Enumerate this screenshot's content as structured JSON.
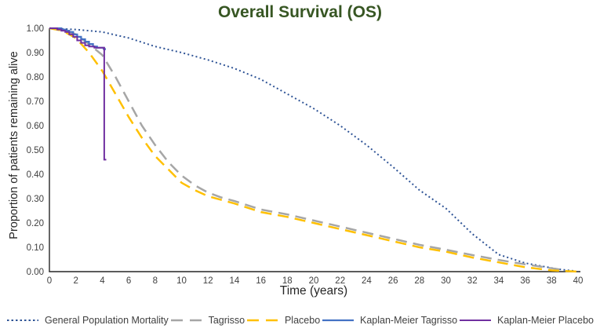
{
  "colors": {
    "title_text": "#375623",
    "axis_line": "#262626",
    "tick_text": "#404040",
    "axis_label_text": "#262626",
    "legend_text": "#404040",
    "background": "#FFFFFF"
  },
  "chart_data": {
    "type": "line",
    "title": "Overall Survival (OS)",
    "xlabel": "Time (years)",
    "ylabel": "Proportion of patients remaining alive",
    "xlim": [
      0,
      40
    ],
    "ylim": [
      0,
      1
    ],
    "x_ticks": [
      0,
      2,
      4,
      6,
      8,
      10,
      12,
      14,
      16,
      18,
      20,
      22,
      24,
      26,
      28,
      30,
      32,
      34,
      36,
      38,
      40
    ],
    "y_tick_labels": [
      "1.00",
      "0.90",
      "0.80",
      "0.70",
      "0.60",
      "0.50",
      "0.40",
      "0.30",
      "0.20",
      "0.10",
      "0.00"
    ],
    "grid": false,
    "legend_position": "bottom",
    "series": [
      {
        "name": "General Population Mortality",
        "color": "#2F5496",
        "line_style": "dotted",
        "line_width": 2,
        "step": false,
        "x": [
          0,
          2,
          4,
          6,
          8,
          10,
          12,
          14,
          16,
          18,
          20,
          22,
          24,
          26,
          28,
          30,
          32,
          34,
          36,
          37.5,
          38.5,
          39.7
        ],
        "y": [
          1.0,
          0.995,
          0.985,
          0.96,
          0.925,
          0.9,
          0.87,
          0.835,
          0.79,
          0.73,
          0.67,
          0.6,
          0.52,
          0.43,
          0.335,
          0.26,
          0.155,
          0.07,
          0.035,
          0.02,
          0.01,
          0.003
        ]
      },
      {
        "name": "Tagrisso",
        "color": "#A6A6A6",
        "line_style": "dashed",
        "line_width": 2.5,
        "step": false,
        "x": [
          0,
          1,
          2,
          3,
          4,
          5,
          6,
          7,
          8,
          9,
          10,
          11,
          12,
          13,
          14,
          16,
          18,
          20,
          22,
          24,
          26,
          28,
          30,
          32,
          34,
          36,
          38,
          39
        ],
        "y": [
          1.0,
          0.995,
          0.975,
          0.935,
          0.89,
          0.8,
          0.7,
          0.6,
          0.52,
          0.45,
          0.395,
          0.355,
          0.325,
          0.305,
          0.29,
          0.255,
          0.235,
          0.21,
          0.185,
          0.16,
          0.135,
          0.11,
          0.09,
          0.068,
          0.048,
          0.03,
          0.014,
          0.006
        ]
      },
      {
        "name": "Placebo",
        "color": "#FFC000",
        "line_style": "dashed",
        "line_width": 2.5,
        "step": false,
        "x": [
          0,
          1,
          2,
          3,
          4,
          5,
          6,
          7,
          8,
          9,
          10,
          11,
          12,
          13,
          14,
          16,
          18,
          20,
          22,
          24,
          26,
          28,
          30,
          32,
          34,
          36,
          38,
          40
        ],
        "y": [
          1.0,
          0.99,
          0.96,
          0.9,
          0.825,
          0.73,
          0.635,
          0.55,
          0.475,
          0.42,
          0.365,
          0.335,
          0.31,
          0.295,
          0.28,
          0.245,
          0.225,
          0.2,
          0.175,
          0.15,
          0.125,
          0.1,
          0.082,
          0.058,
          0.038,
          0.018,
          0.005,
          0.0
        ]
      },
      {
        "name": "Kaplan-Meier Tagrisso",
        "color": "#4472C4",
        "line_style": "solid",
        "line_width": 2.2,
        "step": true,
        "x": [
          0,
          0.9,
          1.2,
          1.5,
          1.8,
          2.1,
          2.4,
          2.7,
          3.0,
          3.3,
          3.6,
          4.1,
          4.2
        ],
        "y": [
          1.0,
          0.995,
          0.99,
          0.985,
          0.975,
          0.965,
          0.955,
          0.945,
          0.935,
          0.925,
          0.92,
          0.915,
          0.91
        ]
      },
      {
        "name": "Kaplan-Meier Placebo",
        "color": "#7030A0",
        "line_style": "solid",
        "line_width": 2,
        "step": true,
        "x": [
          0,
          0.6,
          0.9,
          1.2,
          1.5,
          1.8,
          2.1,
          2.4,
          2.7,
          3.0,
          3.4,
          4.15,
          4.3
        ],
        "y": [
          1.0,
          0.995,
          0.99,
          0.985,
          0.975,
          0.965,
          0.95,
          0.94,
          0.93,
          0.925,
          0.92,
          0.46,
          0.46
        ]
      }
    ]
  }
}
